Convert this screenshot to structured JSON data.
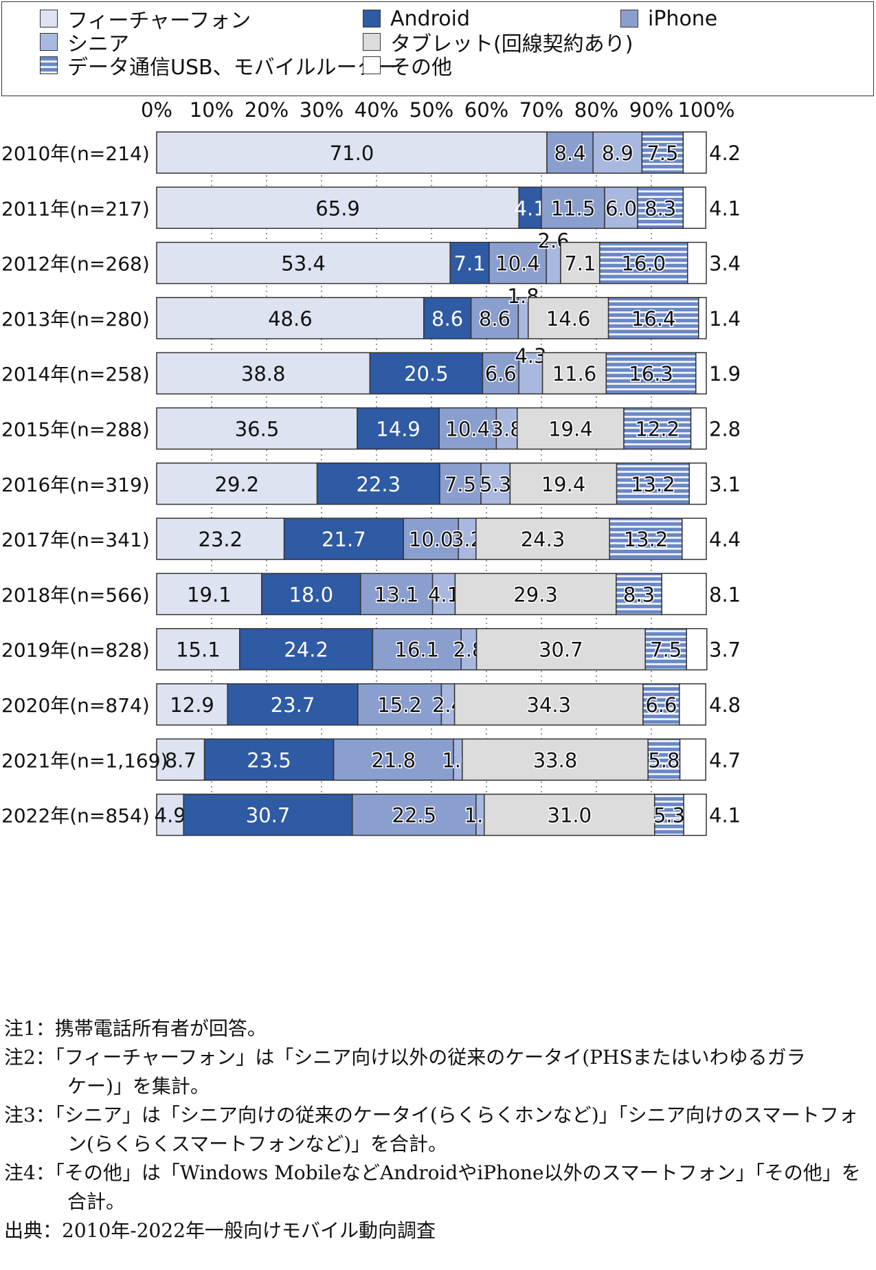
{
  "legend": {
    "items": [
      {
        "label": "フィーチャーフォン",
        "color": "#dde3f0",
        "pattern": "solid"
      },
      {
        "label": "Android",
        "color": "#2f5aa4",
        "pattern": "solid"
      },
      {
        "label": "iPhone",
        "color": "#8b9fcf",
        "pattern": "solid"
      },
      {
        "label": "シニア",
        "color": "#a9b8df",
        "pattern": "solid"
      },
      {
        "label": "タブレット(回線契約あり)",
        "color": "#dcdcdc",
        "pattern": "solid"
      },
      {
        "label": "データ通信USB、モバイルルーター",
        "color": "#6b88c6",
        "pattern": "stripes"
      },
      {
        "label": "その他",
        "color": "#ffffff",
        "pattern": "solid"
      }
    ]
  },
  "chart_data": {
    "type": "bar",
    "orientation": "horizontal",
    "stacked": true,
    "xlim": [
      0,
      100
    ],
    "xticks": [
      "0%",
      "10%",
      "20%",
      "30%",
      "40%",
      "50%",
      "60%",
      "70%",
      "80%",
      "90%",
      "100%"
    ],
    "categories": [
      "2010年(n=214)",
      "2011年(n=217)",
      "2012年(n=268)",
      "2013年(n=280)",
      "2014年(n=258)",
      "2015年(n=288)",
      "2016年(n=319)",
      "2017年(n=341)",
      "2018年(n=566)",
      "2019年(n=828)",
      "2020年(n=874)",
      "2021年(n=1,169)",
      "2022年(n=854)"
    ],
    "series": [
      {
        "name": "フィーチャーフォン",
        "values": [
          71.0,
          65.9,
          53.4,
          48.6,
          38.8,
          36.5,
          29.2,
          23.2,
          19.1,
          15.1,
          12.9,
          8.7,
          4.9
        ]
      },
      {
        "name": "Android",
        "values": [
          null,
          4.1,
          7.1,
          8.6,
          20.5,
          14.9,
          22.3,
          21.7,
          18.0,
          24.2,
          23.7,
          23.5,
          30.7
        ]
      },
      {
        "name": "iPhone",
        "values": [
          8.4,
          11.5,
          10.4,
          8.6,
          6.6,
          10.4,
          7.5,
          10.0,
          13.1,
          16.1,
          15.2,
          21.8,
          22.5
        ]
      },
      {
        "name": "シニア",
        "values": [
          8.9,
          6.0,
          2.6,
          1.8,
          4.3,
          3.8,
          5.3,
          3.2,
          4.1,
          2.8,
          2.4,
          1.6,
          1.5
        ]
      },
      {
        "name": "タブレット(回線契約あり)",
        "values": [
          null,
          null,
          7.1,
          14.6,
          11.6,
          19.4,
          19.4,
          24.3,
          29.3,
          30.7,
          34.3,
          33.8,
          31.0
        ]
      },
      {
        "name": "データ通信USB、モバイルルーター",
        "values": [
          7.5,
          8.3,
          16.0,
          16.4,
          16.3,
          12.2,
          13.2,
          13.2,
          8.3,
          7.5,
          6.6,
          5.8,
          5.3
        ]
      },
      {
        "name": "その他",
        "values": [
          4.2,
          4.1,
          3.4,
          1.4,
          1.9,
          2.8,
          3.1,
          4.4,
          8.1,
          3.7,
          4.8,
          4.7,
          4.1
        ]
      }
    ],
    "grid": "dotted vertical",
    "legend_position": "top"
  },
  "notes": [
    {
      "text": "注1：携帯電話所有者が回答。"
    },
    {
      "text": "注2：「フィーチャーフォン」は「シニア向け以外の従来のケータイ(PHSまたはいわゆるガラ",
      "cont": "ケー)」を集計。"
    },
    {
      "text": "注3：「シニア」は「シニア向けの従来のケータイ(らくらくホンなど)」「シニア向けのスマートフォ",
      "cont": "ン(らくらくスマートフォンなど)」を合計。"
    },
    {
      "text": "注4：「その他」は「Windows MobileなどAndroidやiPhone以外のスマートフォン」「その他」を",
      "cont": "合計。"
    },
    {
      "text": "出典：2010年-2022年一般向けモバイル動向調査"
    }
  ]
}
